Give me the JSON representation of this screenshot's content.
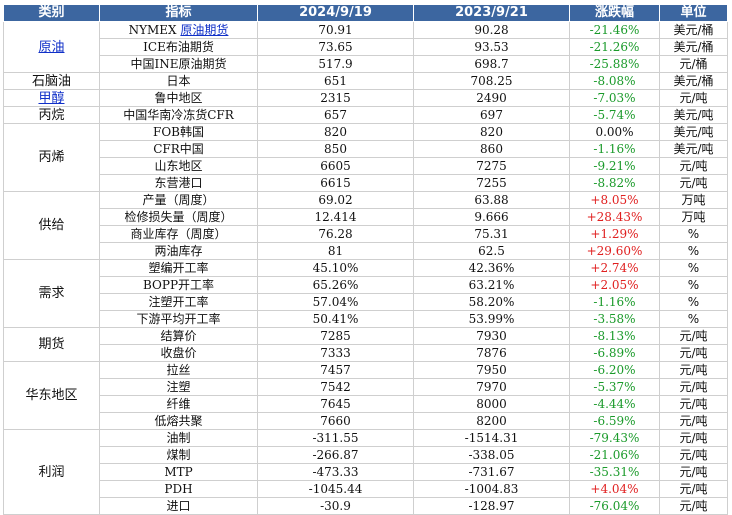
{
  "headers": [
    "类别",
    "指标",
    "2024/9/19",
    "2023/9/21",
    "涨跌幅",
    "单位"
  ],
  "categories": {
    "crude": "原油",
    "naphtha": "石脑油",
    "methanol": "甲醇",
    "propane": "丙烷",
    "propylene": "丙烯",
    "supply": "供给",
    "demand": "需求",
    "futures": "期货",
    "east_china": "华东地区",
    "profit": "利润"
  },
  "rows": [
    {
      "name_prefix": "NYMEX ",
      "name_link": "原油期货",
      "v1": "70.91",
      "v2": "90.28",
      "chg": "-21.46%",
      "unit": "美元/桶"
    },
    {
      "name": "ICE布油期货",
      "v1": "73.65",
      "v2": "93.53",
      "chg": "-21.26%",
      "unit": "美元/桶"
    },
    {
      "name": "中国INE原油期货",
      "v1": "517.9",
      "v2": "698.7",
      "chg": "-25.88%",
      "unit": "元/桶"
    },
    {
      "name": "日本",
      "v1": "651",
      "v2": "708.25",
      "chg": "-8.08%",
      "unit": "美元/桶"
    },
    {
      "name": "鲁中地区",
      "v1": "2315",
      "v2": "2490",
      "chg": "-7.03%",
      "unit": "元/吨"
    },
    {
      "name": "中国华南冷冻货CFR",
      "v1": "657",
      "v2": "697",
      "chg": "-5.74%",
      "unit": "美元/吨"
    },
    {
      "name": "FOB韩国",
      "v1": "820",
      "v2": "820",
      "chg": "0.00%",
      "unit": "美元/吨"
    },
    {
      "name": "CFR中国",
      "v1": "850",
      "v2": "860",
      "chg": "-1.16%",
      "unit": "美元/吨"
    },
    {
      "name": "山东地区",
      "v1": "6605",
      "v2": "7275",
      "chg": "-9.21%",
      "unit": "元/吨"
    },
    {
      "name": "东营港口",
      "v1": "6615",
      "v2": "7255",
      "chg": "-8.82%",
      "unit": "元/吨"
    },
    {
      "name": "产量（周度）",
      "v1": "69.02",
      "v2": "63.88",
      "chg": "+8.05%",
      "unit": "万吨"
    },
    {
      "name": "检修损失量（周度）",
      "v1": "12.414",
      "v2": "9.666",
      "chg": "+28.43%",
      "unit": "万吨"
    },
    {
      "name": "商业库存（周度）",
      "v1": "76.28",
      "v2": "75.31",
      "chg": "+1.29%",
      "unit": "%"
    },
    {
      "name": "两油库存",
      "v1": "81",
      "v2": "62.5",
      "chg": "+29.60%",
      "unit": "%"
    },
    {
      "name": "塑编开工率",
      "v1": "45.10%",
      "v2": "42.36%",
      "chg": "+2.74%",
      "unit": "%"
    },
    {
      "name": "BOPP开工率",
      "v1": "65.26%",
      "v2": "63.21%",
      "chg": "+2.05%",
      "unit": "%"
    },
    {
      "name": "注塑开工率",
      "v1": "57.04%",
      "v2": "58.20%",
      "chg": "-1.16%",
      "unit": "%"
    },
    {
      "name": "下游平均开工率",
      "v1": "50.41%",
      "v2": "53.99%",
      "chg": "-3.58%",
      "unit": "%"
    },
    {
      "name": "结算价",
      "v1": "7285",
      "v2": "7930",
      "chg": "-8.13%",
      "unit": "元/吨"
    },
    {
      "name": "收盘价",
      "v1": "7333",
      "v2": "7876",
      "chg": "-6.89%",
      "unit": "元/吨"
    },
    {
      "name": "拉丝",
      "v1": "7457",
      "v2": "7950",
      "chg": "-6.20%",
      "unit": "元/吨"
    },
    {
      "name": "注塑",
      "v1": "7542",
      "v2": "7970",
      "chg": "-5.37%",
      "unit": "元/吨"
    },
    {
      "name": "纤维",
      "v1": "7645",
      "v2": "8000",
      "chg": "-4.44%",
      "unit": "元/吨"
    },
    {
      "name": "低熔共聚",
      "v1": "7660",
      "v2": "8200",
      "chg": "-6.59%",
      "unit": "元/吨"
    },
    {
      "name": "油制",
      "v1": "-311.55",
      "v2": "-1514.31",
      "chg": "-79.43%",
      "unit": "元/吨"
    },
    {
      "name": "煤制",
      "v1": "-266.87",
      "v2": "-338.05",
      "chg": "-21.06%",
      "unit": "元/吨"
    },
    {
      "name": "MTP",
      "v1": "-473.33",
      "v2": "-731.67",
      "chg": "-35.31%",
      "unit": "元/吨"
    },
    {
      "name": "PDH",
      "v1": "-1045.44",
      "v2": "-1004.83",
      "chg": "+4.04%",
      "unit": "元/吨"
    },
    {
      "name": "进口",
      "v1": "-30.9",
      "v2": "-128.97",
      "chg": "-76.04%",
      "unit": "元/吨"
    }
  ],
  "colors": {
    "header_bg": "#3c66a0",
    "up": "#e02020",
    "down": "#1a9a2a",
    "link": "#1030c8"
  }
}
